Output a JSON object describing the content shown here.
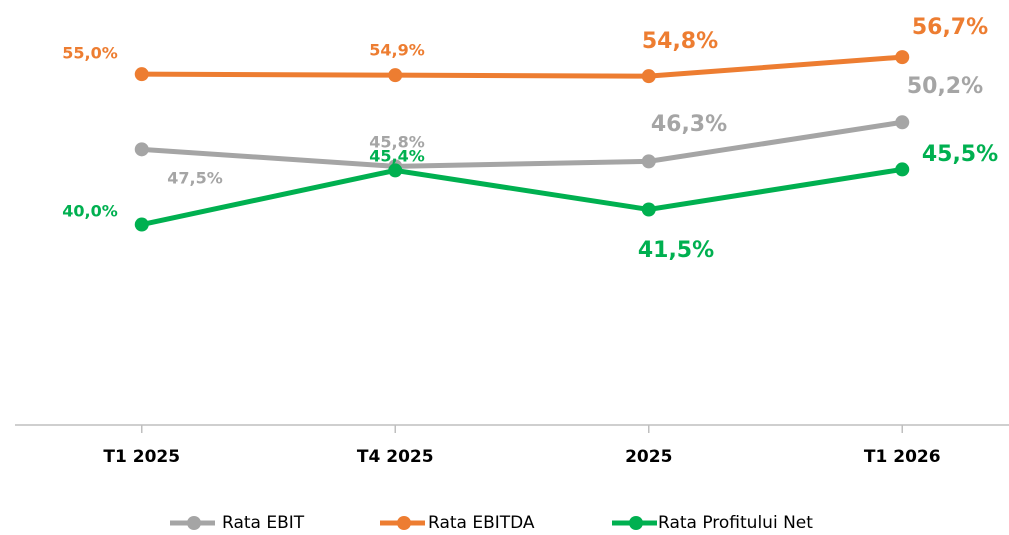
{
  "chart_data": {
    "type": "line",
    "categories": [
      "T1 2025",
      "T4 2025",
      "2025",
      "T1 2026"
    ],
    "ylim": [
      20,
      62
    ],
    "series": [
      {
        "name": "Rata EBIT",
        "color": "#a5a5a5",
        "values": [
          47.5,
          45.8,
          46.3,
          50.2
        ],
        "value_labels": [
          "47,5%",
          "45,8%",
          "46,3%",
          "50,2%"
        ]
      },
      {
        "name": "Rata EBITDA",
        "color": "#ed7d31",
        "values": [
          55.0,
          54.9,
          54.8,
          56.7
        ],
        "value_labels": [
          "55,0%",
          "54,9%",
          "54,8%",
          "56,7%"
        ]
      },
      {
        "name": "Rata Profitului Net",
        "color": "#00b050",
        "values": [
          40.0,
          45.4,
          41.5,
          45.5
        ],
        "value_labels": [
          "40,0%",
          "45,4%",
          "41,5%",
          "45,5%"
        ]
      }
    ]
  }
}
